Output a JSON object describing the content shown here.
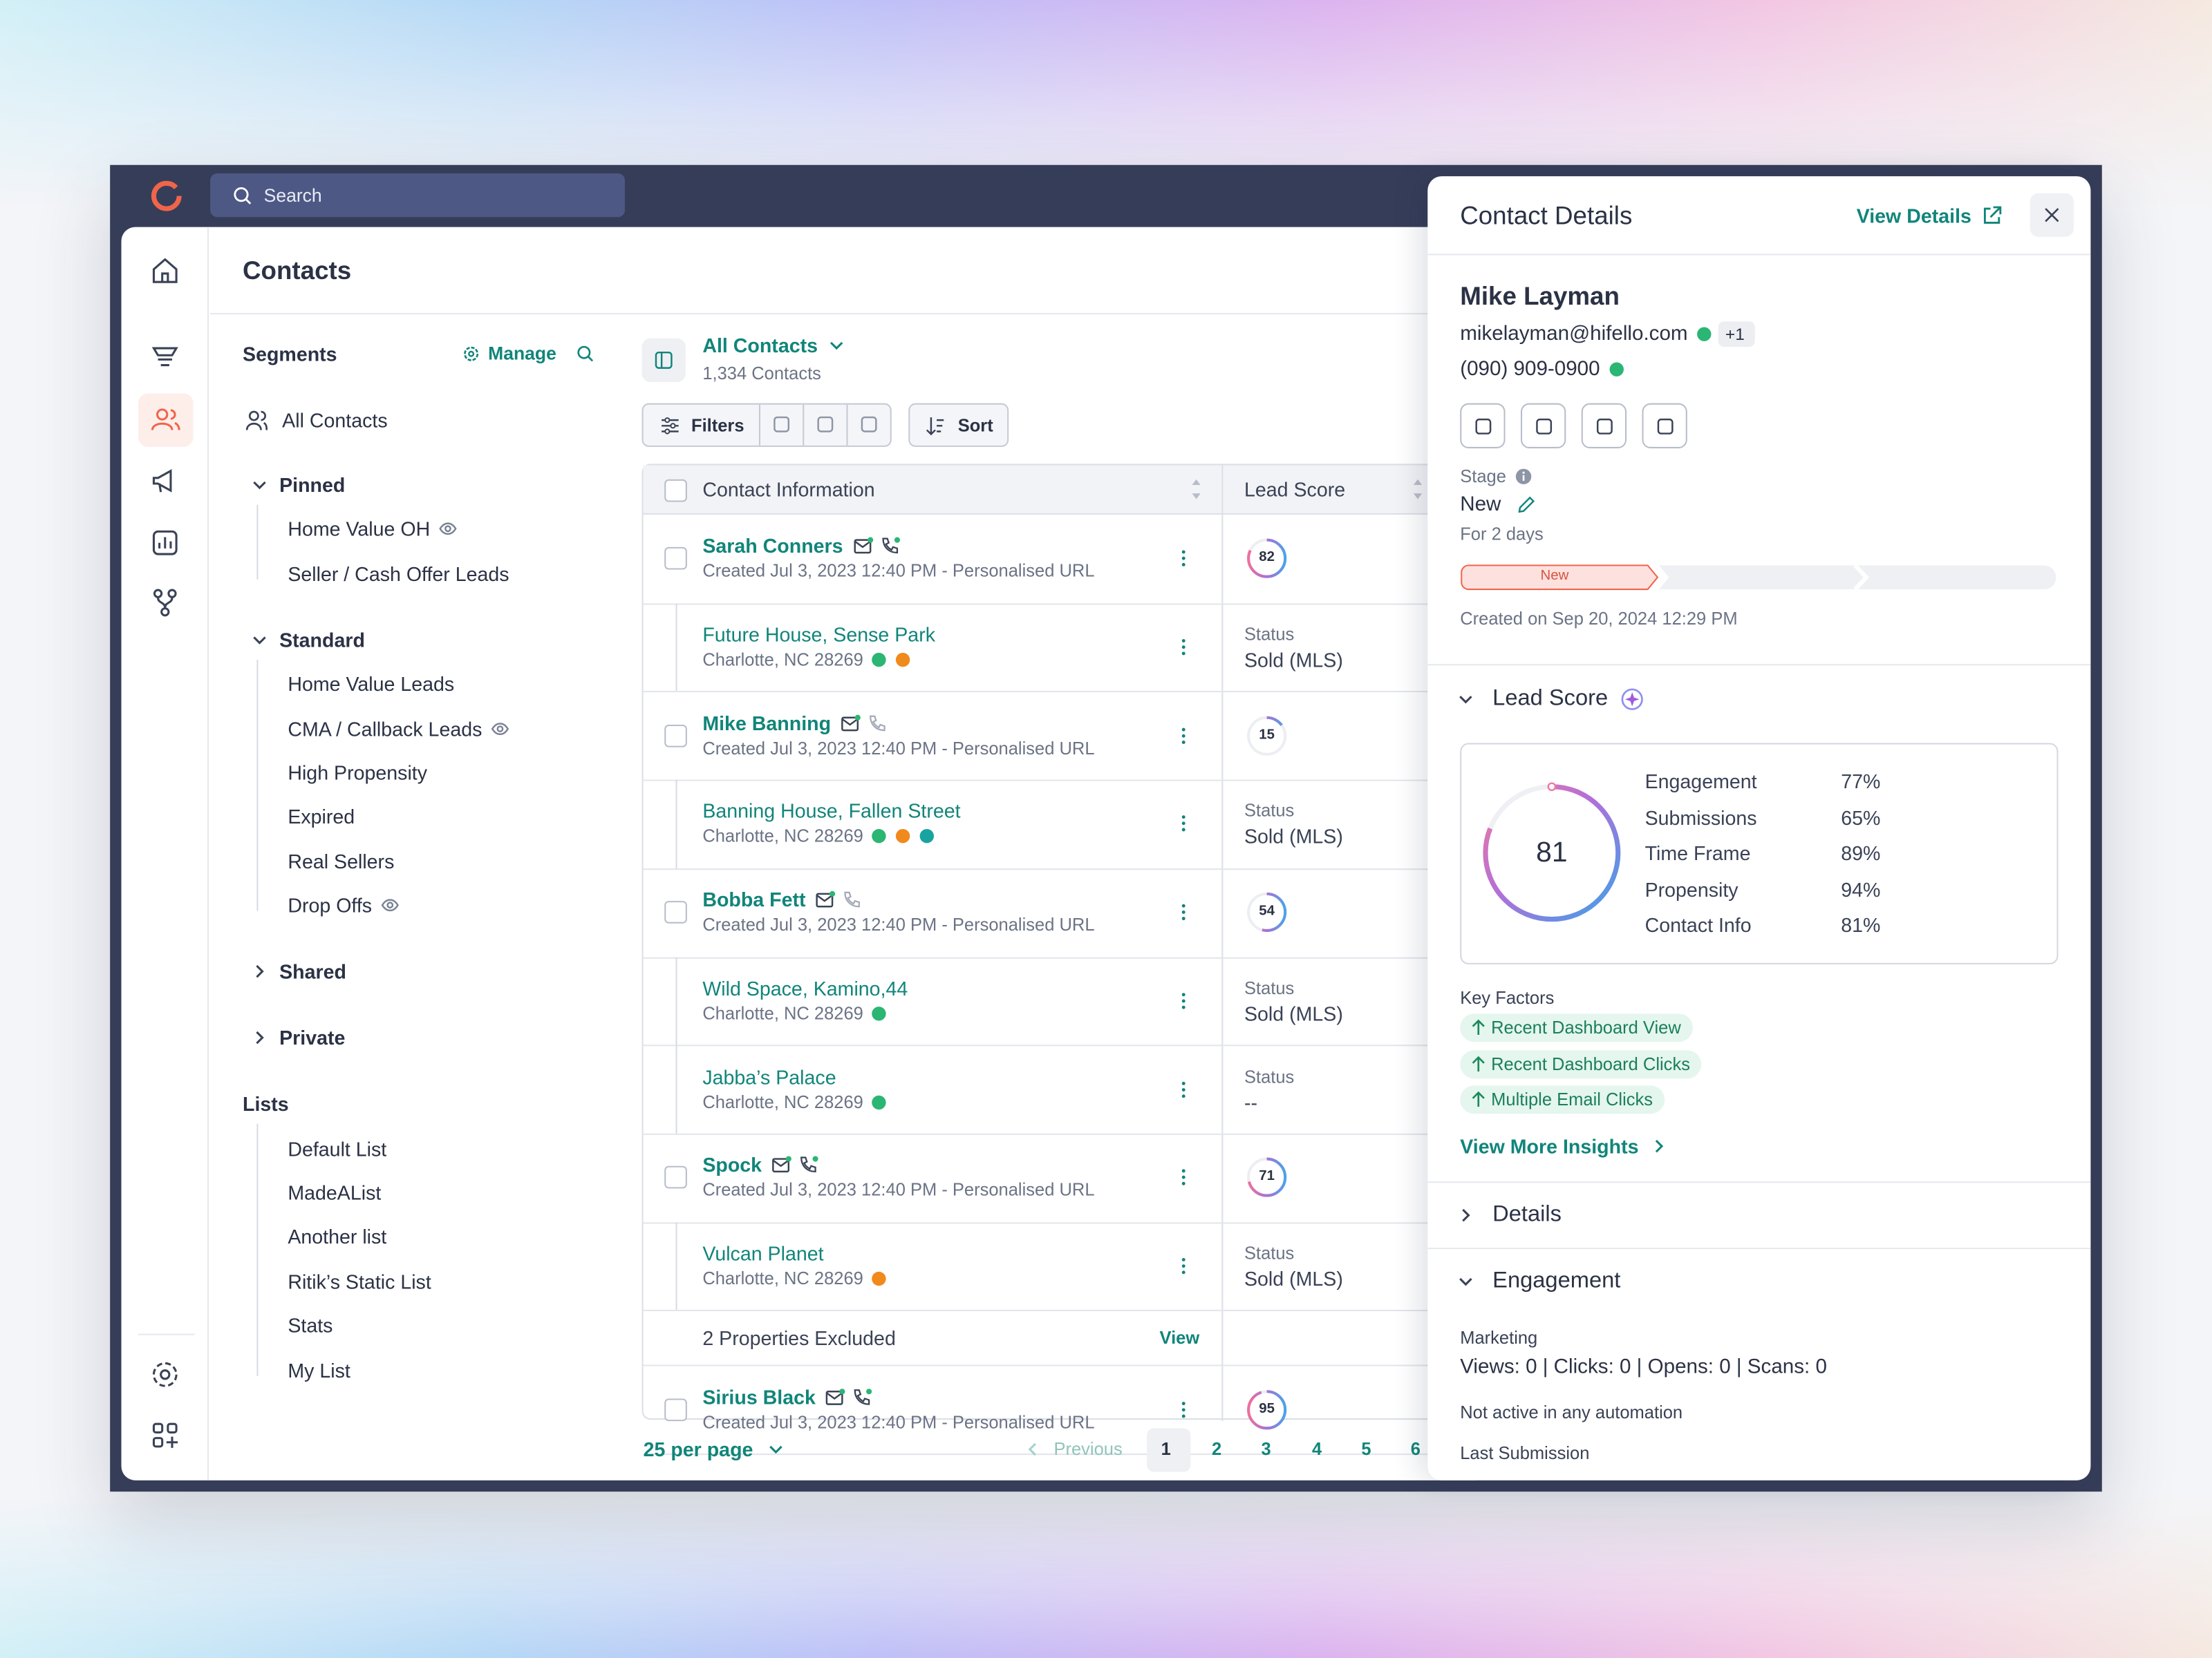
{
  "topbar": {
    "search_placeholder": "Search"
  },
  "page_title": "Contacts",
  "segments": {
    "title": "Segments",
    "manage": "Manage",
    "all_contacts": "All Contacts",
    "groups": [
      {
        "name": "Pinned",
        "items": [
          "Home Value OH",
          "Seller / Cash Offer Leads"
        ]
      },
      {
        "name": "Standard",
        "items": [
          "Home Value Leads",
          "CMA / Callback Leads",
          "High Propensity",
          "Expired",
          "Real Sellers",
          "Drop Offs"
        ]
      },
      {
        "name": "Shared",
        "items": []
      },
      {
        "name": "Private",
        "items": []
      }
    ]
  },
  "lists": {
    "title": "Lists",
    "items": [
      "Default List",
      "MadeAList",
      "Another list",
      "Ritik’s Static List",
      "Stats",
      "My List"
    ]
  },
  "view": {
    "name": "All Contacts",
    "count": "1,334 Contacts",
    "filters": "Filters",
    "sort": "Sort"
  },
  "table": {
    "columns": [
      "Contact Information",
      "Lead Score"
    ],
    "rows": [
      {
        "kind": "contact",
        "name": "Sarah Conners",
        "meta": "Created Jul 3, 2023 12:40 PM - Personalised URL",
        "score": 82
      },
      {
        "kind": "property",
        "name": "Future House, Sense Park",
        "address": "Charlotte, NC 28269",
        "status_label": "Status",
        "status": "Sold (MLS)"
      },
      {
        "kind": "contact",
        "name": "Mike Banning",
        "meta": "Created Jul 3, 2023 12:40 PM - Personalised URL",
        "score": 15
      },
      {
        "kind": "property",
        "name": "Banning House, Fallen Street",
        "address": "Charlotte, NC 28269",
        "status_label": "Status",
        "status": "Sold (MLS)"
      },
      {
        "kind": "contact",
        "name": "Bobba Fett",
        "meta": "Created Jul 3, 2023 12:40 PM - Personalised URL",
        "score": 54
      },
      {
        "kind": "property",
        "name": "Wild Space, Kamino,44",
        "address": "Charlotte, NC 28269",
        "status_label": "Status",
        "status": "Sold (MLS)"
      },
      {
        "kind": "property",
        "name": "Jabba’s Palace",
        "address": "Charlotte, NC 28269",
        "status_label": "Status",
        "status": "--"
      },
      {
        "kind": "contact",
        "name": "Spock",
        "meta": "Created Jul 3, 2023 12:40 PM - Personalised URL",
        "score": 71
      },
      {
        "kind": "property",
        "name": "Vulcan Planet",
        "address": "Charlotte, NC 28269",
        "status_label": "Status",
        "status": "Sold (MLS)"
      },
      {
        "kind": "excluded",
        "text": "2 Properties Excluded",
        "action": "View"
      },
      {
        "kind": "contact",
        "name": "Sirius Black",
        "meta": "Created Jul 3, 2023 12:40 PM - Personalised URL",
        "score": 95
      }
    ]
  },
  "pagination": {
    "per_page": "25 per page",
    "previous": "Previous",
    "pages": [
      1,
      2,
      3,
      4,
      5,
      6
    ]
  },
  "details": {
    "title": "Contact Details",
    "view_details": "View Details",
    "name": "Mike Layman",
    "email": "mikelayman@hifello.com",
    "email_extra": "+1",
    "phone": "(090) 909-0900",
    "stage_label": "Stage",
    "stage": "New",
    "stage_duration": "For 2 days",
    "stage_pill": "New",
    "created": "Created on Sep 20, 2024 12:29 PM",
    "lead_score": {
      "title": "Lead Score",
      "score": 81,
      "factors": [
        {
          "name": "Engagement",
          "value": "77%"
        },
        {
          "name": "Submissions",
          "value": "65%"
        },
        {
          "name": "Time Frame",
          "value": "89%"
        },
        {
          "name": "Propensity",
          "value": "94%"
        },
        {
          "name": "Contact Info",
          "value": "81%"
        }
      ],
      "key_factors_title": "Key Factors",
      "key_factors": [
        "Recent Dashboard View",
        "Recent Dashboard Clicks",
        "Multiple Email Clicks"
      ],
      "view_more": "View More Insights"
    },
    "sections": {
      "details": "Details",
      "engagement": "Engagement"
    },
    "engagement": {
      "marketing_label": "Marketing",
      "marketing_stats": "Views: 0 | Clicks: 0 | Opens: 0 | Scans: 0",
      "automation": "Not active in any automation",
      "last_submission": "Last Submission"
    }
  }
}
